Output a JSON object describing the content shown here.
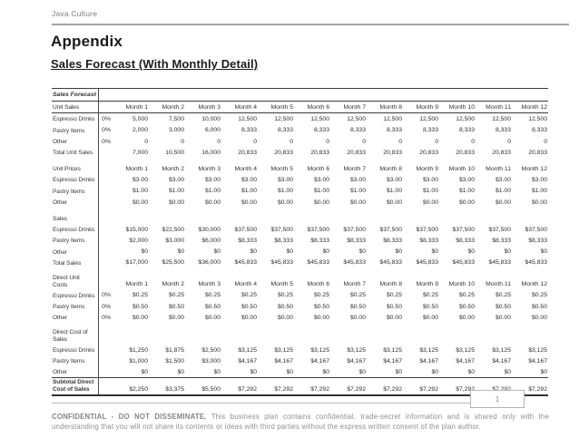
{
  "page": {
    "company": "Java Culture",
    "title": "Appendix",
    "subtitle": "Sales Forecast (With Monthly Detail)",
    "page_number": "1",
    "footer_bold": "CONFIDENTIAL - DO NOT DISSEMINATE.",
    "footer_text": "This business plan contains confidential, trade-secret information and is shared only with the understanding that you will not share its contents or ideas with third parties without the express written consent of the plan author."
  },
  "table": {
    "title": "Sales Forecast",
    "months": [
      "Month 1",
      "Month 2",
      "Month 3",
      "Month 4",
      "Month 5",
      "Month 6",
      "Month 7",
      "Month 8",
      "Month 9",
      "Month 10",
      "Month 11",
      "Month 12"
    ],
    "sections": [
      {
        "label": "Unit Sales",
        "months": true,
        "rows": [
          {
            "label": "Espresso Drinks",
            "pct": "0%",
            "values": [
              "5,000",
              "7,500",
              "10,000",
              "12,500",
              "12,500",
              "12,500",
              "12,500",
              "12,500",
              "12,500",
              "12,500",
              "12,500",
              "12,500"
            ]
          },
          {
            "label": "Pastry Items",
            "pct": "0%",
            "values": [
              "2,000",
              "3,000",
              "6,000",
              "8,333",
              "8,333",
              "8,333",
              "8,333",
              "8,333",
              "8,333",
              "8,333",
              "8,333",
              "8,333"
            ]
          },
          {
            "label": "Other",
            "pct": "0%",
            "values": [
              "0",
              "0",
              "0",
              "0",
              "0",
              "0",
              "0",
              "0",
              "0",
              "0",
              "0",
              "0"
            ]
          },
          {
            "label": "Total Unit Sales",
            "pct": "",
            "values": [
              "7,000",
              "10,500",
              "16,000",
              "20,833",
              "20,833",
              "20,833",
              "20,833",
              "20,833",
              "20,833",
              "20,833",
              "20,833",
              "20,833"
            ]
          }
        ]
      },
      {
        "label": "Unit Prices",
        "months": true,
        "rows": [
          {
            "label": "Espresso Drinks",
            "pct": "",
            "values": [
              "$3.00",
              "$3.00",
              "$3.00",
              "$3.00",
              "$3.00",
              "$3.00",
              "$3.00",
              "$3.00",
              "$3.00",
              "$3.00",
              "$3.00",
              "$3.00"
            ]
          },
          {
            "label": "Pastry Items",
            "pct": "",
            "values": [
              "$1.00",
              "$1.00",
              "$1.00",
              "$1.00",
              "$1.00",
              "$1.00",
              "$1.00",
              "$1.00",
              "$1.00",
              "$1.00",
              "$1.00",
              "$1.00"
            ]
          },
          {
            "label": "Other",
            "pct": "",
            "values": [
              "$0.00",
              "$0.00",
              "$0.00",
              "$0.00",
              "$0.00",
              "$0.00",
              "$0.00",
              "$0.00",
              "$0.00",
              "$0.00",
              "$0.00",
              "$0.00"
            ]
          }
        ]
      },
      {
        "label": "Sales",
        "months": false,
        "rows": [
          {
            "label": "Espresso Drinks",
            "pct": "",
            "values": [
              "$15,000",
              "$22,500",
              "$30,000",
              "$37,500",
              "$37,500",
              "$37,500",
              "$37,500",
              "$37,500",
              "$37,500",
              "$37,500",
              "$37,500",
              "$37,500"
            ]
          },
          {
            "label": "Pastry Items",
            "pct": "",
            "values": [
              "$2,000",
              "$3,000",
              "$6,000",
              "$8,333",
              "$8,333",
              "$8,333",
              "$8,333",
              "$8,333",
              "$8,333",
              "$8,333",
              "$8,333",
              "$8,333"
            ]
          },
          {
            "label": "Other",
            "pct": "",
            "values": [
              "$0",
              "$0",
              "$0",
              "$0",
              "$0",
              "$0",
              "$0",
              "$0",
              "$0",
              "$0",
              "$0",
              "$0"
            ]
          },
          {
            "label": "Total Sales",
            "pct": "",
            "values": [
              "$17,000",
              "$25,500",
              "$36,000",
              "$45,833",
              "$45,833",
              "$45,833",
              "$45,833",
              "$45,833",
              "$45,833",
              "$45,833",
              "$45,833",
              "$45,833"
            ]
          }
        ]
      },
      {
        "label": "Direct Unit\nCosts",
        "months": true,
        "rows": [
          {
            "label": "Espresso Drinks",
            "pct": "0%",
            "values": [
              "$0.25",
              "$0.25",
              "$0.25",
              "$0.25",
              "$0.25",
              "$0.25",
              "$0.25",
              "$0.25",
              "$0.25",
              "$0.25",
              "$0.25",
              "$0.25"
            ]
          },
          {
            "label": "Pastry Items",
            "pct": "0%",
            "values": [
              "$0.50",
              "$0.50",
              "$0.50",
              "$0.50",
              "$0.50",
              "$0.50",
              "$0.50",
              "$0.50",
              "$0.50",
              "$0.50",
              "$0.50",
              "$0.50"
            ]
          },
          {
            "label": "Other",
            "pct": "0%",
            "values": [
              "$0.00",
              "$0.00",
              "$0.00",
              "$0.00",
              "$0.00",
              "$0.00",
              "$0.00",
              "$0.00",
              "$0.00",
              "$0.00",
              "$0.00",
              "$0.00"
            ]
          }
        ]
      },
      {
        "label": "Direct Cost of\nSales",
        "months": false,
        "rows": [
          {
            "label": "Espresso Drinks",
            "pct": "",
            "values": [
              "$1,250",
              "$1,875",
              "$2,500",
              "$3,125",
              "$3,125",
              "$3,125",
              "$3,125",
              "$3,125",
              "$3,125",
              "$3,125",
              "$3,125",
              "$3,125"
            ]
          },
          {
            "label": "Pastry Items",
            "pct": "",
            "values": [
              "$1,000",
              "$1,500",
              "$3,000",
              "$4,167",
              "$4,167",
              "$4,167",
              "$4,167",
              "$4,167",
              "$4,167",
              "$4,167",
              "$4,167",
              "$4,167"
            ]
          },
          {
            "label": "Other",
            "pct": "",
            "values": [
              "$0",
              "$0",
              "$0",
              "$0",
              "$0",
              "$0",
              "$0",
              "$0",
              "$0",
              "$0",
              "$0",
              "$0"
            ]
          },
          {
            "label": "Subtotal Direct\nCost of Sales",
            "pct": "",
            "subtotal": true,
            "values": [
              "$2,250",
              "$3,375",
              "$5,500",
              "$7,292",
              "$7,292",
              "$7,292",
              "$7,292",
              "$7,292",
              "$7,292",
              "$7,292",
              "$7,292",
              "$7,292"
            ]
          }
        ]
      }
    ]
  }
}
